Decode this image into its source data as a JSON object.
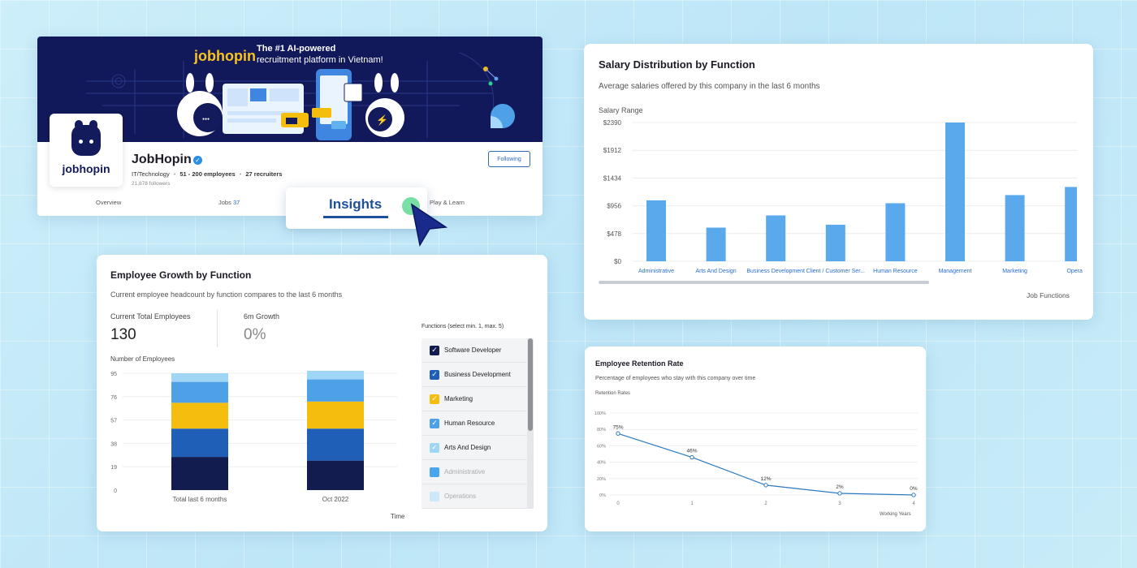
{
  "profile": {
    "banner_logo": "jobhopin",
    "banner_tagline_1": "The #1 AI-powered",
    "banner_tagline_2": "recruitment platform in Vietnam!",
    "logo_text": "jobhopin",
    "name": "JobHopin",
    "industry": "IT/Technology",
    "employees": "51 - 200 employees",
    "recruiters": "27 recruiters",
    "followers": "21,878 followers",
    "follow_button": "Following",
    "tabs": {
      "overview": "Overview",
      "jobs": "Jobs",
      "jobs_count": "37",
      "insights": "Insights",
      "play": "Play & Learn"
    }
  },
  "growth": {
    "title": "Employee Growth by Function",
    "subtitle": "Current employee headcount by function compares to the last 6 months",
    "current_label": "Current Total Employees",
    "current_value": "130",
    "growth_label": "6m Growth",
    "growth_value": "0%",
    "ylabel": "Number of Employees",
    "xlabel": "Time",
    "functions_title": "Functions (select min. 1, max. 5)",
    "functions": [
      {
        "label": "Software Developer",
        "color": "#121c4e",
        "checked": true
      },
      {
        "label": "Business Development",
        "color": "#1f5fb7",
        "checked": true
      },
      {
        "label": "Marketing",
        "color": "#f5be0f",
        "checked": true
      },
      {
        "label": "Human Resource",
        "color": "#4ea1e6",
        "checked": true
      },
      {
        "label": "Arts And Design",
        "color": "#9fd6f5",
        "checked": true
      },
      {
        "label": "Administrative",
        "color": "#4aa5ec",
        "checked": false
      },
      {
        "label": "Operations",
        "color": "#cde8fa",
        "checked": false
      }
    ]
  },
  "salary": {
    "title": "Salary Distribution by Function",
    "subtitle": "Average salaries offered by this company in the last 6 months",
    "ylabel": "Salary Range",
    "xlabel": "Job Functions"
  },
  "retention": {
    "title": "Employee Retention Rate",
    "subtitle": "Percentage of employees who stay with this company over time",
    "ylabel": "Retention Rates",
    "xlabel": "Working Years"
  },
  "chart_data": [
    {
      "type": "bar",
      "stacked": true,
      "title": "Employee Growth by Function",
      "ylabel": "Number of Employees",
      "xlabel": "Time",
      "categories": [
        "Total last 6 months",
        "Oct 2022"
      ],
      "yticks": [
        "0",
        "19",
        "38",
        "57",
        "76",
        "95"
      ],
      "ylim": [
        0,
        95
      ],
      "series": [
        {
          "name": "Software Developer",
          "color": "#121c4e",
          "values": [
            27,
            24
          ]
        },
        {
          "name": "Business Development",
          "color": "#1f5fb7",
          "values": [
            23,
            26
          ]
        },
        {
          "name": "Marketing",
          "color": "#f5be0f",
          "values": [
            21,
            22
          ]
        },
        {
          "name": "Human Resource",
          "color": "#4ea1e6",
          "values": [
            17,
            18
          ]
        },
        {
          "name": "Arts And Design",
          "color": "#9fd6f5",
          "values": [
            7,
            7
          ]
        }
      ]
    },
    {
      "type": "bar",
      "title": "Salary Distribution by Function",
      "ylabel": "Salary Range",
      "xlabel": "Job Functions",
      "yticks": [
        "$0",
        "$478",
        "$956",
        "$1434",
        "$1912",
        "$2390"
      ],
      "ylim": [
        0,
        2390
      ],
      "color": "#59a9ec",
      "categories": [
        "Administrative",
        "Arts And Design",
        "Business Development",
        "Client / Customer Ser...",
        "Human Resource",
        "Management",
        "Marketing",
        "Opera"
      ],
      "values": [
        1050,
        580,
        790,
        630,
        1000,
        2390,
        1140,
        1280
      ]
    },
    {
      "type": "line",
      "title": "Employee Retention Rate",
      "ylabel": "Retention Rates",
      "xlabel": "Working Years",
      "yticks": [
        "0%",
        "20%",
        "40%",
        "60%",
        "80%",
        "100%"
      ],
      "ylim": [
        0,
        100
      ],
      "x": [
        0,
        1,
        2,
        3,
        4
      ],
      "values": [
        75,
        46,
        12,
        2,
        0
      ],
      "labels": [
        "75%",
        "46%",
        "12%",
        "2%",
        "0%"
      ],
      "color": "#2a7ac0"
    }
  ]
}
